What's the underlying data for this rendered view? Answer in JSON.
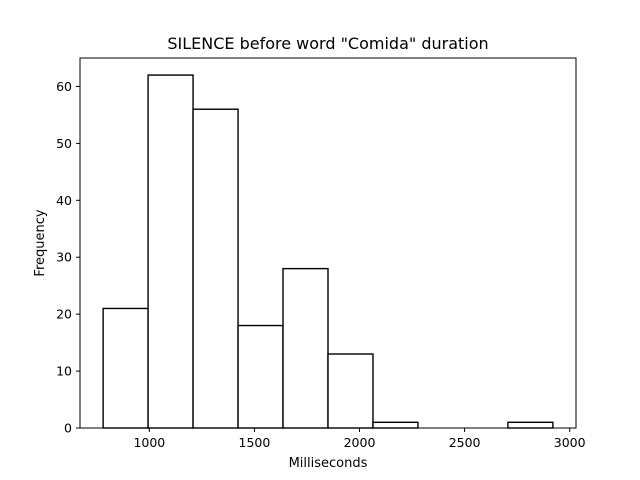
{
  "chart_data": {
    "type": "bar",
    "subtype": "histogram",
    "title": "SILENCE before word \"Comida\" duration",
    "xlabel": "Milliseconds",
    "ylabel": "Frequency",
    "xlim": [
      670,
      3030
    ],
    "ylim": [
      0,
      65
    ],
    "xticks": [
      1000,
      1500,
      2000,
      2500,
      3000
    ],
    "yticks": [
      0,
      10,
      20,
      30,
      40,
      50,
      60
    ],
    "grid": false,
    "bins": [
      {
        "start": 780,
        "end": 994,
        "value": 21
      },
      {
        "start": 994,
        "end": 1208,
        "value": 62
      },
      {
        "start": 1208,
        "end": 1422,
        "value": 56
      },
      {
        "start": 1422,
        "end": 1636,
        "value": 18
      },
      {
        "start": 1636,
        "end": 1850,
        "value": 28
      },
      {
        "start": 1850,
        "end": 2064,
        "value": 13
      },
      {
        "start": 2064,
        "end": 2278,
        "value": 1
      },
      {
        "start": 2278,
        "end": 2492,
        "value": 0
      },
      {
        "start": 2492,
        "end": 2706,
        "value": 0
      },
      {
        "start": 2706,
        "end": 2920,
        "value": 1
      }
    ],
    "colors": {
      "bar_fill": "#ffffff",
      "bar_edge": "#000000"
    }
  }
}
